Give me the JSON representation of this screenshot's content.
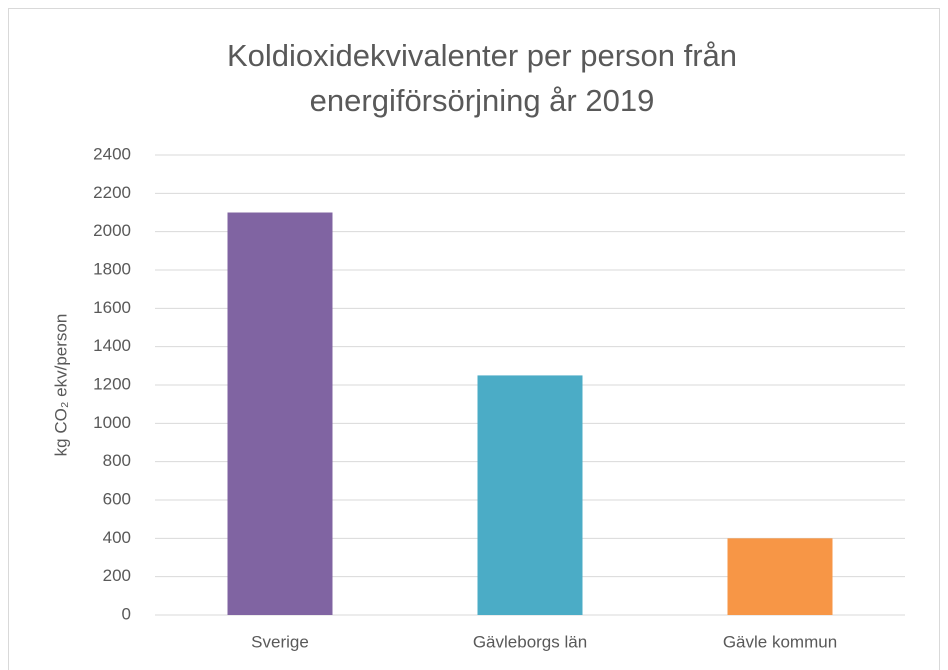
{
  "chart_data": {
    "type": "bar",
    "title": [
      "Koldioxidekvivalenter per person från",
      "energiförsörjning år 2019"
    ],
    "y_label": "kg CO₂ ekv/person",
    "categories": [
      "Sverige",
      "Gävleborgs län",
      "Gävle kommun"
    ],
    "values": [
      2100,
      1250,
      400
    ],
    "colors": [
      "#8064a2",
      "#4bacc6",
      "#f79646"
    ],
    "ylim": [
      0,
      2400
    ],
    "yticks": [
      0,
      200,
      400,
      600,
      800,
      1000,
      1200,
      1400,
      1600,
      1800,
      2000,
      2200,
      2400
    ],
    "grid": true
  }
}
